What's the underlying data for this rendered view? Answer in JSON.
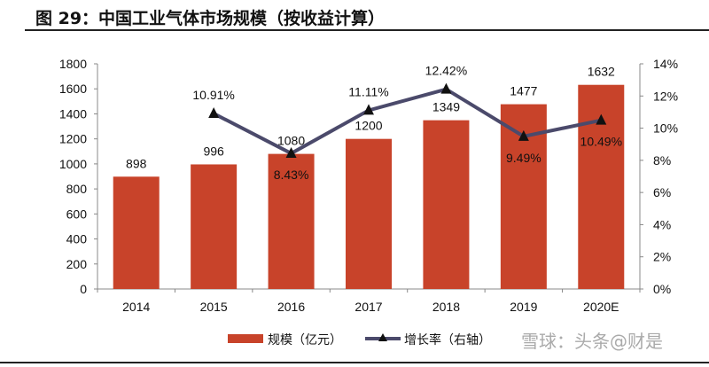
{
  "title": "图 29：中国工业气体市场规模（按收益计算）",
  "watermark": "雪球：头条@财是",
  "chart_data": {
    "type": "bar+line",
    "categories": [
      "2014",
      "2015",
      "2016",
      "2017",
      "2018",
      "2019",
      "2020E"
    ],
    "series": [
      {
        "name": "规模（亿元）",
        "type": "bar",
        "axis": "left",
        "color": "#c8432a",
        "values": [
          898,
          996,
          1080,
          1200,
          1349,
          1477,
          1632
        ]
      },
      {
        "name": "增长率（右轴）",
        "type": "line",
        "axis": "right",
        "color": "#4b4a6b",
        "marker": "triangle",
        "values": [
          null,
          10.91,
          8.43,
          11.11,
          12.42,
          9.49,
          10.49
        ],
        "labels": [
          "",
          "10.91%",
          "8.43%",
          "11.11%",
          "12.42%",
          "9.49%",
          "10.49%"
        ]
      }
    ],
    "left_axis": {
      "ylim": [
        0,
        1800
      ],
      "ticks": [
        "0",
        "200",
        "400",
        "600",
        "800",
        "1000",
        "1200",
        "1400",
        "1600",
        "1800"
      ]
    },
    "right_axis": {
      "ylim": [
        0,
        14
      ],
      "ticks": [
        "0%",
        "2%",
        "4%",
        "6%",
        "8%",
        "10%",
        "12%",
        "14%"
      ]
    },
    "legend": "bottom",
    "grid": false
  }
}
